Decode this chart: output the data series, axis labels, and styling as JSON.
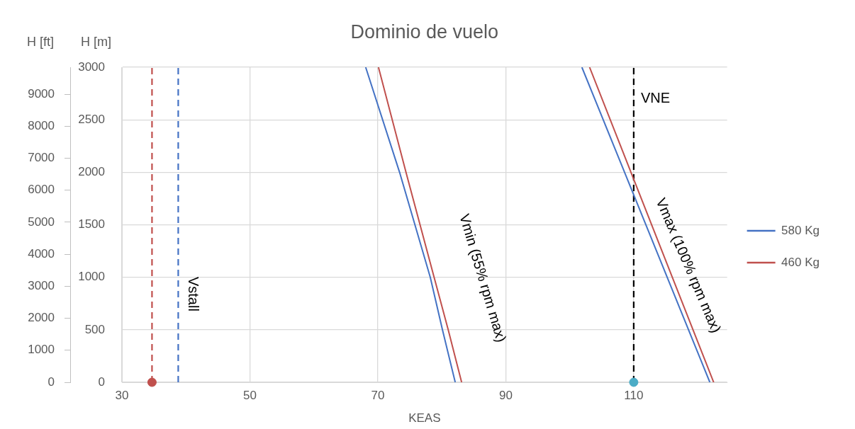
{
  "chart_data": {
    "type": "line",
    "title": "Dominio de vuelo",
    "xlabel": "KEAS",
    "ylabel": "H [m]",
    "y2label": "H [ft]",
    "xlim": [
      30,
      124.6
    ],
    "xticks": [
      30,
      50,
      70,
      90,
      110
    ],
    "ylim": [
      0,
      3000
    ],
    "yticks": [
      0,
      500,
      1000,
      1500,
      2000,
      2500,
      3000
    ],
    "y2lim": [
      0,
      9842.5
    ],
    "y2ticks": [
      0,
      1000,
      2000,
      3000,
      4000,
      5000,
      6000,
      7000,
      8000,
      9000
    ],
    "grid": true,
    "legend": "right",
    "marker": "none",
    "line_style": "solid",
    "series": [
      {
        "name": "580 Kg",
        "color": "#4472c4",
        "x": [
          82.1,
          80.1,
          78.2,
          73.4,
          68.1
        ],
        "values": [
          0,
          500,
          1000,
          2000,
          3000
        ]
      },
      {
        "name": "460 Kg",
        "color": "#c0504d",
        "x": [
          83.1,
          81.0,
          78.8,
          74.4,
          70.1
        ],
        "values": [
          0,
          500,
          1000,
          2000,
          3000
        ]
      },
      {
        "color": "#4472c4",
        "x": [
          121.9,
          101.9
        ],
        "values": [
          0,
          3000
        ]
      },
      {
        "color": "#c0504d",
        "x": [
          122.5,
          103.1
        ],
        "values": [
          0,
          3000
        ]
      },
      {
        "type": "scatter",
        "marker": "circle",
        "color": "#c0504d",
        "x": [
          34.7
        ],
        "values": [
          0
        ]
      },
      {
        "type": "scatter",
        "marker": "circle",
        "color": "#4bacc6",
        "x": [
          110
        ],
        "values": [
          0
        ]
      }
    ],
    "ref_lines": [
      {
        "axis": "x",
        "value": 34.7,
        "color": "#c0504d",
        "line_style": "dashed"
      },
      {
        "axis": "x",
        "value": 38.8,
        "color": "#4472c4",
        "line_style": "dashed",
        "label": "Vstall"
      },
      {
        "axis": "x",
        "value": 110,
        "color": "#000000",
        "line_style": "dashed",
        "label": "VNE"
      }
    ],
    "annotations": [
      "Vmin (55% rpm max)",
      "Vmax (100% rpm max)"
    ]
  }
}
